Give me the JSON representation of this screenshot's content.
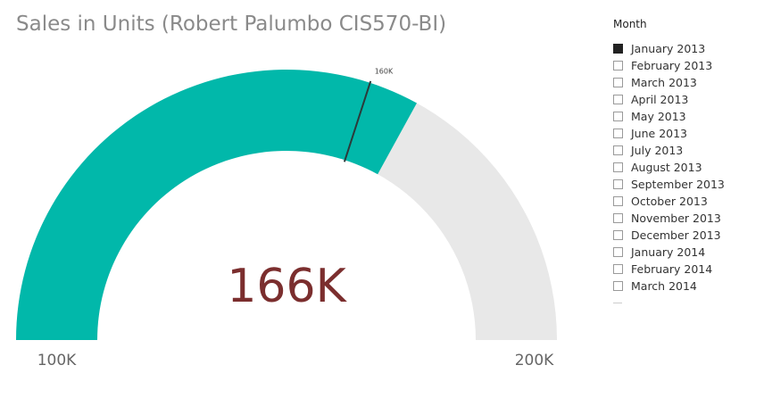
{
  "chart_data": {
    "type": "gauge",
    "title": "Sales in Units (Robert Palumbo CIS570-BI)",
    "min": 100000,
    "max": 200000,
    "value": 166000,
    "target": 160000,
    "labels": {
      "min": "100K",
      "max": "200K",
      "value": "166K",
      "target": "160K"
    },
    "colors": {
      "fill": "#01b8aa",
      "track": "#e8e8e8",
      "value_text": "#7b2e2e",
      "target_line": "#2b3a3a",
      "axis_text": "#666666"
    }
  },
  "slicer": {
    "header": "Month",
    "items": [
      {
        "label": "January 2013",
        "selected": true
      },
      {
        "label": "February 2013",
        "selected": false
      },
      {
        "label": "March 2013",
        "selected": false
      },
      {
        "label": "April 2013",
        "selected": false
      },
      {
        "label": "May 2013",
        "selected": false
      },
      {
        "label": "June 2013",
        "selected": false
      },
      {
        "label": "July 2013",
        "selected": false
      },
      {
        "label": "August 2013",
        "selected": false
      },
      {
        "label": "September 2013",
        "selected": false
      },
      {
        "label": "October 2013",
        "selected": false
      },
      {
        "label": "November 2013",
        "selected": false
      },
      {
        "label": "December 2013",
        "selected": false
      },
      {
        "label": "January 2014",
        "selected": false
      },
      {
        "label": "February 2014",
        "selected": false
      },
      {
        "label": "March 2014",
        "selected": false
      }
    ]
  }
}
